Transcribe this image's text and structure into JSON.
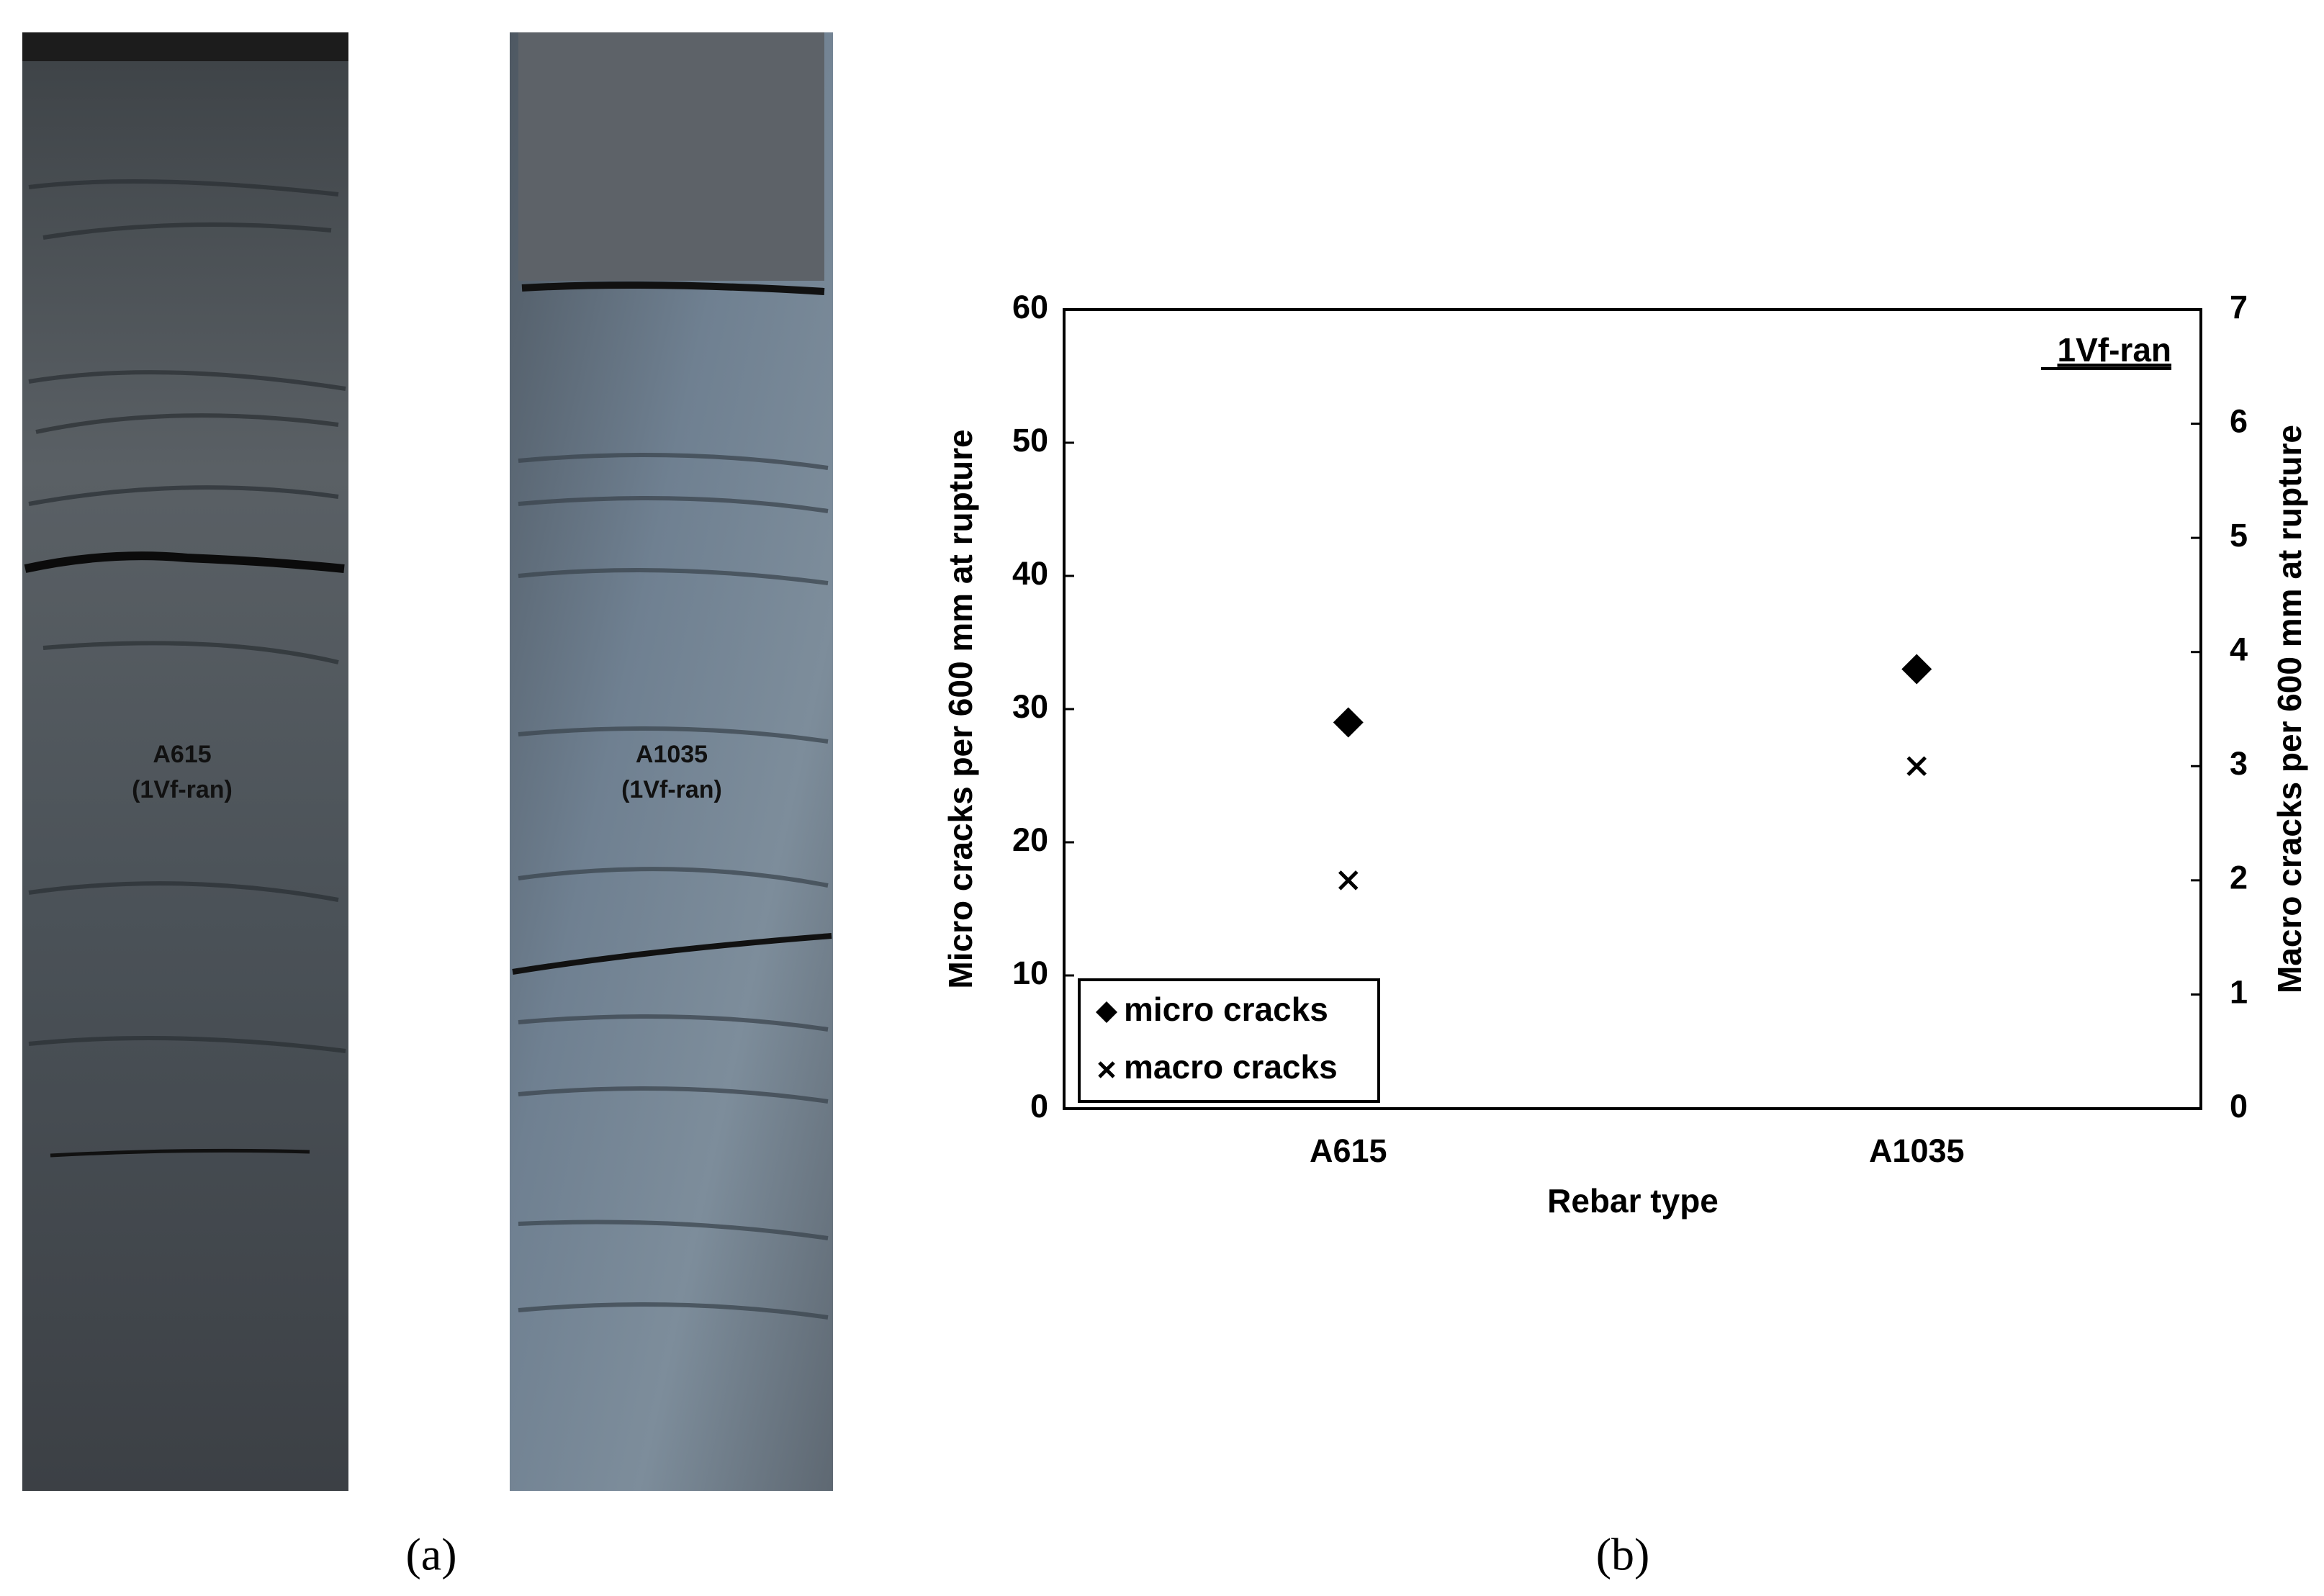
{
  "figure": {
    "panel_a_label": "(a)",
    "panel_b_label": "(b)",
    "specimens": [
      {
        "name": "A615",
        "subtitle": "(1Vf-ran)"
      },
      {
        "name": "A1035",
        "subtitle": "(1Vf-ran)"
      }
    ]
  },
  "chart_data": {
    "type": "scatter",
    "annotation": "1Vf-ran",
    "xlabel": "Rebar type",
    "ylabel": "Micro cracks per 600 mm at rupture",
    "y2label": "Macro cracks per 600 mm at rupture",
    "categories": [
      "A615",
      "A1035"
    ],
    "series": [
      {
        "name": "micro cracks",
        "color": "#000000",
        "marker": "diamond",
        "values": [
          29,
          33
        ]
      },
      {
        "name": "macro cracks",
        "color": "#000000",
        "marker": "x",
        "axis": "y2",
        "values": [
          2,
          3
        ]
      }
    ],
    "ylim": [
      0,
      60
    ],
    "yticks": [
      0,
      10,
      20,
      30,
      40,
      50,
      60
    ],
    "y2lim": [
      0,
      7
    ],
    "y2ticks": [
      0,
      1,
      2,
      3,
      4,
      5,
      6,
      7
    ],
    "legend": "lower left",
    "grid": false
  }
}
